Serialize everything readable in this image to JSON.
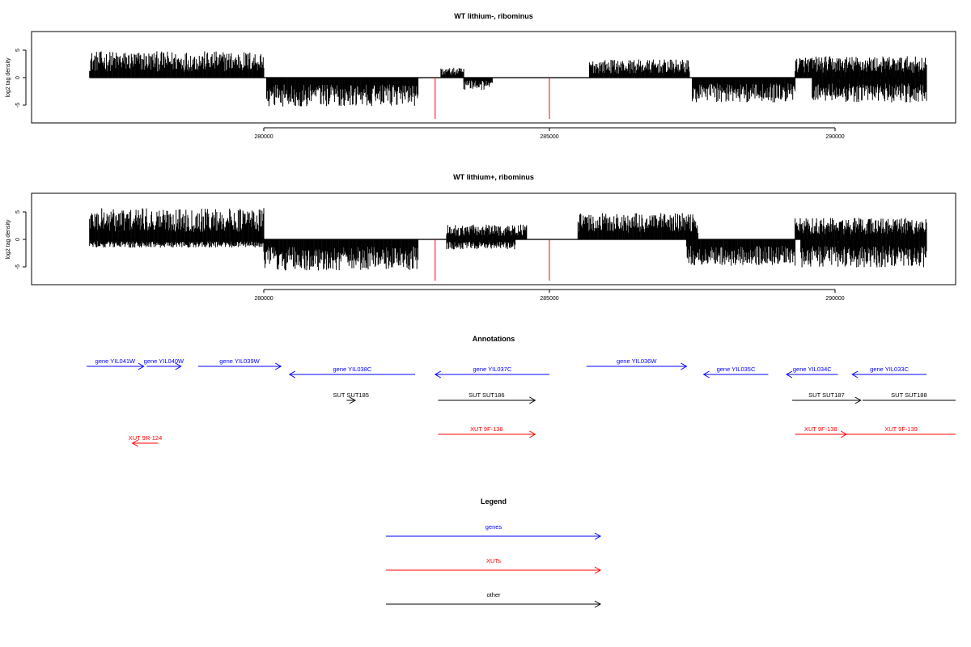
{
  "chart_data": [
    {
      "type": "bar",
      "title": "WT lithium-, ribominus",
      "xlabel": "",
      "ylabel": "log2 tag density",
      "x_range": [
        276300,
        292500
      ],
      "ylim": [
        -8,
        8
      ],
      "x_ticks": [
        "280000",
        "285000",
        "290000"
      ],
      "y_ticks": [
        "5",
        "0",
        "-5"
      ],
      "grid": false,
      "series": [
        {
          "strand": "+",
          "color": "#000000",
          "segments": [
            {
              "start": 276950,
              "end": 280000,
              "level": 3.2
            },
            {
              "start": 283100,
              "end": 283500,
              "level": 1.2
            },
            {
              "start": 285700,
              "end": 287450,
              "level": 2.2
            },
            {
              "start": 289300,
              "end": 291600,
              "level": 2.6
            }
          ]
        },
        {
          "strand": "-",
          "color": "#000000",
          "segments": [
            {
              "start": 280050,
              "end": 282700,
              "level": -3.5
            },
            {
              "start": 283500,
              "end": 284000,
              "level": -1.5
            },
            {
              "start": 287500,
              "end": 289300,
              "level": -3.0
            },
            {
              "start": 289600,
              "end": 291600,
              "level": -3.0
            }
          ]
        }
      ],
      "markers": [
        {
          "x": 283000,
          "value": -7.5,
          "color": "#ff0000"
        },
        {
          "x": 285000,
          "value": -7.5,
          "color": "#ff0000"
        }
      ]
    },
    {
      "type": "bar",
      "title": "WT lithium+, ribominus",
      "xlabel": "",
      "ylabel": "log2 tag density",
      "x_range": [
        276300,
        292500
      ],
      "ylim": [
        -8,
        8
      ],
      "x_ticks": [
        "280000",
        "285000",
        "290000"
      ],
      "y_ticks": [
        "5",
        "0",
        "-5"
      ],
      "grid": false,
      "series": [
        {
          "strand": "+",
          "color": "#000000",
          "segments": [
            {
              "start": 276950,
              "end": 280000,
              "level": 3.8
            },
            {
              "start": 283200,
              "end": 284600,
              "level": 1.8
            },
            {
              "start": 285500,
              "end": 287600,
              "level": 3.2
            },
            {
              "start": 289300,
              "end": 291600,
              "level": 2.6
            }
          ]
        },
        {
          "strand": "-",
          "color": "#000000",
          "segments": [
            {
              "start": 276950,
              "end": 280000,
              "level": -1.0
            },
            {
              "start": 280000,
              "end": 282700,
              "level": -3.8
            },
            {
              "start": 283200,
              "end": 284400,
              "level": -1.2
            },
            {
              "start": 287400,
              "end": 289300,
              "level": -3.2
            },
            {
              "start": 289400,
              "end": 291600,
              "level": -3.4
            }
          ]
        }
      ],
      "markers": [
        {
          "x": 283000,
          "value": -7.5,
          "color": "#ff0000"
        },
        {
          "x": 285000,
          "value": -7.5,
          "color": "#ff0000"
        }
      ]
    }
  ],
  "annotations": {
    "title": "Annotations",
    "features": [
      {
        "label": "gene YIL041W",
        "kind": "gene",
        "strand": "+",
        "start": 276900,
        "end": 277900,
        "row": 1
      },
      {
        "label": "gene YIL040W",
        "kind": "gene",
        "strand": "+",
        "start": 277950,
        "end": 278550,
        "row": 1
      },
      {
        "label": "gene YIL039W",
        "kind": "gene",
        "strand": "+",
        "start": 278850,
        "end": 280300,
        "row": 1
      },
      {
        "label": "gene YIL038C",
        "kind": "gene",
        "strand": "-",
        "start": 280450,
        "end": 282650,
        "row": 2
      },
      {
        "label": "gene YIL037C",
        "kind": "gene",
        "strand": "-",
        "start": 283000,
        "end": 285000,
        "row": 2
      },
      {
        "label": "gene YIL036W",
        "kind": "gene",
        "strand": "+",
        "start": 285650,
        "end": 287400,
        "row": 1
      },
      {
        "label": "gene YIL035C",
        "kind": "gene",
        "strand": "-",
        "start": 287700,
        "end": 288830,
        "row": 2
      },
      {
        "label": "gene YIL034C",
        "kind": "gene",
        "strand": "-",
        "start": 289150,
        "end": 290050,
        "row": 2
      },
      {
        "label": "gene YIL033C",
        "kind": "gene",
        "strand": "-",
        "start": 290300,
        "end": 291600,
        "row": 2
      },
      {
        "label": "SUT SUT185",
        "kind": "other",
        "strand": "+",
        "start": 281450,
        "end": 281600,
        "row": 3
      },
      {
        "label": "SUT SUT186",
        "kind": "other",
        "strand": "+",
        "start": 283050,
        "end": 284750,
        "row": 3
      },
      {
        "label": "SUT SUT187",
        "kind": "other",
        "strand": "+",
        "start": 289250,
        "end": 290450,
        "row": 3
      },
      {
        "label": "SUT SUT188",
        "kind": "other",
        "strand": "+",
        "start": 290480,
        "end": 292500,
        "row": 3
      },
      {
        "label": "XUT 9F-136",
        "kind": "xut",
        "strand": "+",
        "start": 283050,
        "end": 284750,
        "row": 4
      },
      {
        "label": "XUT 9F-138",
        "kind": "xut",
        "strand": "+",
        "start": 289300,
        "end": 290200,
        "row": 4
      },
      {
        "label": "XUT 9F-139",
        "kind": "xut",
        "strand": "+",
        "start": 290200,
        "end": 292500,
        "row": 4
      },
      {
        "label": "XUT 9R-124",
        "kind": "xut",
        "strand": "-",
        "start": 277700,
        "end": 278150,
        "row": 5
      }
    ]
  },
  "legend": {
    "title": "Legend",
    "entries": [
      {
        "label": "genes",
        "color": "#0000ff"
      },
      {
        "label": "XUTs",
        "color": "#ff0000"
      },
      {
        "label": "other",
        "color": "#000000"
      }
    ]
  }
}
